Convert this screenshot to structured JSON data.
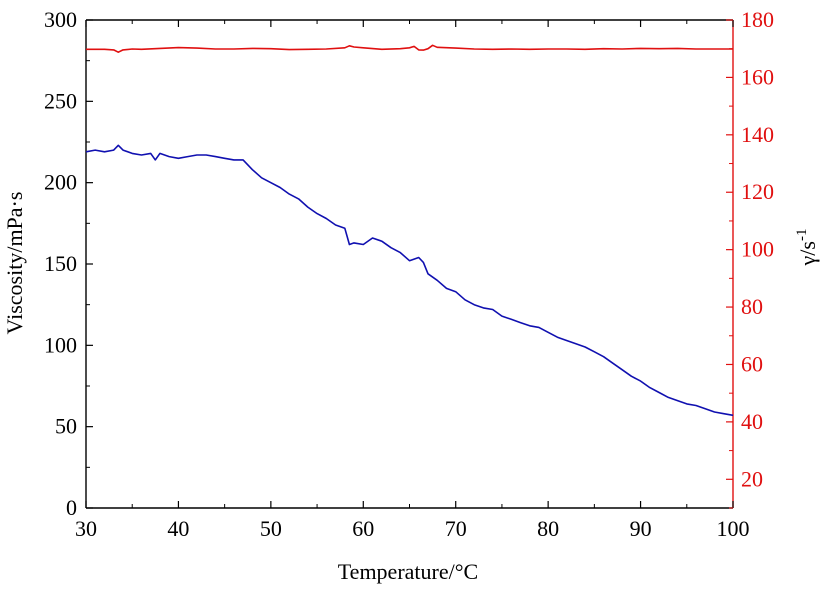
{
  "colors": {
    "viscosity": "#1010b0",
    "shear_rate": "#e01010",
    "axis": "#000000"
  },
  "chart_data": {
    "type": "line",
    "xlabel": "Temperature/°C",
    "ylabel_left": "Viscosity/mPa·s",
    "ylabel_right_base": "γ/s",
    "ylabel_right_exp": "-1",
    "xlim": [
      30,
      100
    ],
    "ylim_left": [
      0,
      300
    ],
    "ylim_right": [
      10,
      180
    ],
    "x_ticks": [
      "30",
      "40",
      "50",
      "60",
      "70",
      "80",
      "90",
      "100"
    ],
    "y_left_ticks": [
      "0",
      "50",
      "100",
      "150",
      "200",
      "250",
      "300"
    ],
    "y_right_ticks": [
      "20",
      "40",
      "60",
      "80",
      "100",
      "120",
      "140",
      "160",
      "180"
    ],
    "grid": false,
    "series": [
      {
        "axis": "left",
        "x": [
          30,
          31,
          32,
          33,
          33.5,
          34,
          35,
          36,
          37,
          37.5,
          38,
          39,
          40,
          41,
          42,
          43,
          44,
          45,
          46,
          47,
          48,
          49,
          50,
          51,
          52,
          53,
          54,
          55,
          56,
          57,
          58,
          58.5,
          59,
          60,
          61,
          62,
          63,
          64,
          65,
          66,
          66.5,
          67,
          68,
          69,
          70,
          71,
          72,
          73,
          74,
          75,
          76,
          77,
          78,
          79,
          80,
          81,
          82,
          83,
          84,
          85,
          86,
          87,
          88,
          89,
          90,
          91,
          92,
          93,
          94,
          95,
          96,
          97,
          98,
          99,
          100
        ],
        "values": [
          219,
          220,
          219,
          220,
          223,
          220,
          218,
          217,
          218,
          214,
          218,
          216,
          215,
          216,
          217,
          217,
          216,
          215,
          214,
          214,
          208,
          203,
          200,
          197,
          193,
          190,
          185,
          181,
          178,
          174,
          172,
          162,
          163,
          162,
          166,
          164,
          160,
          157,
          152,
          154,
          151,
          144,
          140,
          135,
          133,
          128,
          125,
          123,
          122,
          118,
          116,
          114,
          112,
          111,
          108,
          105,
          103,
          101,
          99,
          96,
          93,
          89,
          85,
          81,
          78,
          74,
          71,
          68,
          66,
          64,
          63,
          61,
          59,
          58,
          57
        ]
      },
      {
        "axis": "right",
        "x": [
          30,
          31,
          32,
          33,
          33.5,
          34,
          35,
          36,
          38,
          40,
          42,
          44,
          46,
          48,
          50,
          52,
          54,
          56,
          58,
          58.5,
          59,
          60,
          62,
          64,
          65,
          65.5,
          66,
          66.5,
          67,
          67.5,
          68,
          70,
          72,
          74,
          76,
          78,
          80,
          82,
          84,
          86,
          88,
          90,
          92,
          94,
          96,
          98,
          100
        ],
        "values": [
          169.8,
          169.8,
          169.8,
          169.6,
          168.8,
          169.6,
          169.9,
          169.8,
          170.1,
          170.4,
          170.2,
          169.9,
          169.9,
          170.1,
          170.0,
          169.7,
          169.8,
          169.9,
          170.3,
          171.0,
          170.6,
          170.3,
          169.8,
          170.0,
          170.3,
          170.8,
          169.6,
          169.5,
          170.0,
          171.2,
          170.5,
          170.2,
          169.9,
          169.8,
          169.9,
          169.8,
          169.9,
          169.9,
          169.8,
          170.0,
          169.9,
          170.1,
          170.0,
          170.1,
          169.9,
          169.9,
          169.9
        ]
      }
    ]
  }
}
